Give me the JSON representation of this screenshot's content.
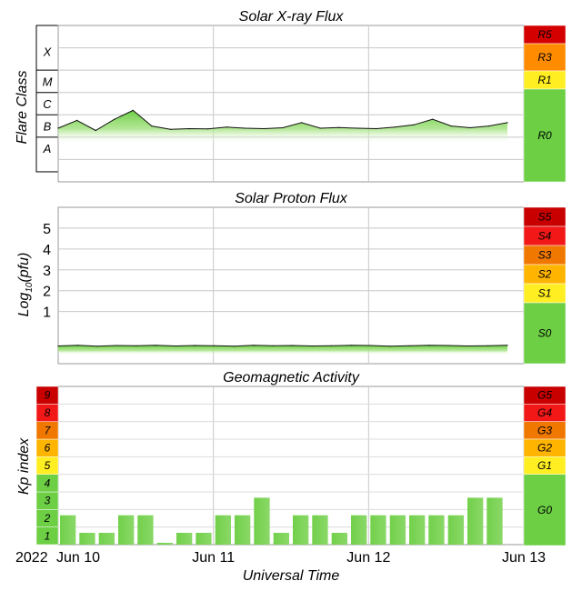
{
  "chart_data": [
    {
      "type": "area",
      "title": "Solar X-ray Flux",
      "ylabel": "Flare Class",
      "class_labels": [
        "X",
        "M",
        "C",
        "B",
        "A"
      ],
      "x": [
        "2022-06-10",
        "2022-06-10T03",
        "2022-06-10T06",
        "2022-06-10T09",
        "2022-06-10T12",
        "2022-06-10T15",
        "2022-06-10T18",
        "2022-06-10T21",
        "2022-06-11",
        "2022-06-11T03",
        "2022-06-11T06",
        "2022-06-11T09",
        "2022-06-11T12",
        "2022-06-11T15",
        "2022-06-11T18",
        "2022-06-11T21",
        "2022-06-12",
        "2022-06-12T03",
        "2022-06-12T06",
        "2022-06-12T09",
        "2022-06-12T12",
        "2022-06-12T15",
        "2022-06-12T18",
        "2022-06-12T21",
        "2022-06-13"
      ],
      "values_log10_wm2": [
        -6.6,
        -6.25,
        -6.7,
        -6.2,
        -5.8,
        -6.5,
        -6.65,
        -6.62,
        -6.63,
        -6.55,
        -6.6,
        -6.62,
        -6.58,
        -6.35,
        -6.6,
        -6.57,
        -6.6,
        -6.62,
        -6.55,
        -6.45,
        -6.2,
        -6.5,
        -6.58,
        -6.5,
        -6.35
      ],
      "ylim_log10_wm2": [
        -9,
        -2
      ],
      "scale_labels": [
        "R5",
        "R3",
        "R1",
        "R0"
      ],
      "scale_colors": [
        "#d40000",
        "#ff8c00",
        "#ffee22",
        "#6ccf44"
      ],
      "grid": true
    },
    {
      "type": "area",
      "title": "Solar Proton Flux",
      "ylabel": "Log10(pfu)",
      "ylabel_main": "Log",
      "ylabel_sub": "10",
      "ylabel_tail": "(pfu)",
      "tick_labels": [
        "1",
        "2",
        "3",
        "4",
        "5"
      ],
      "values_log10_pfu": [
        -0.65,
        -0.62,
        -0.66,
        -0.63,
        -0.64,
        -0.62,
        -0.65,
        -0.63,
        -0.64,
        -0.66,
        -0.62,
        -0.64,
        -0.63,
        -0.65,
        -0.64,
        -0.62,
        -0.63,
        -0.66,
        -0.64,
        -0.62,
        -0.63,
        -0.65,
        -0.64,
        -0.62
      ],
      "ylim": [
        -1.5,
        6
      ],
      "scale_labels": [
        "S5",
        "S4",
        "S3",
        "S2",
        "S1",
        "S0"
      ],
      "scale_colors": [
        "#c80000",
        "#f21818",
        "#f07800",
        "#ffb400",
        "#ffee22",
        "#6ccf44"
      ],
      "grid": true
    },
    {
      "type": "bar",
      "title": "Geomagnetic Activity",
      "ylabel": "Kp index",
      "tick_labels": [
        "1",
        "2",
        "3",
        "4",
        "5",
        "6",
        "7",
        "8",
        "9"
      ],
      "tick_colors": [
        "#6ccf44",
        "#6ccf44",
        "#6ccf44",
        "#6ccf44",
        "#ffee22",
        "#ffb400",
        "#f07800",
        "#f21818",
        "#c80000"
      ],
      "values": [
        1.67,
        0.67,
        0.67,
        1.67,
        1.67,
        0.0,
        0.67,
        0.67,
        1.67,
        1.67,
        2.67,
        0.67,
        1.67,
        1.67,
        0.67,
        1.67,
        1.67,
        1.67,
        1.67,
        1.67,
        1.67,
        2.67,
        2.67
      ],
      "ylim": [
        0,
        9
      ],
      "scale_labels": [
        "G5",
        "G4",
        "G3",
        "G2",
        "G1",
        "G0"
      ],
      "scale_colors": [
        "#c80000",
        "#f21818",
        "#f07800",
        "#ffb400",
        "#ffee22",
        "#6ccf44"
      ],
      "grid": true
    }
  ],
  "x_axis": {
    "year": "2022",
    "tick_labels": [
      "Jun 10",
      "Jun 11",
      "Jun 12",
      "Jun 13"
    ],
    "xlabel": "Universal Time"
  }
}
